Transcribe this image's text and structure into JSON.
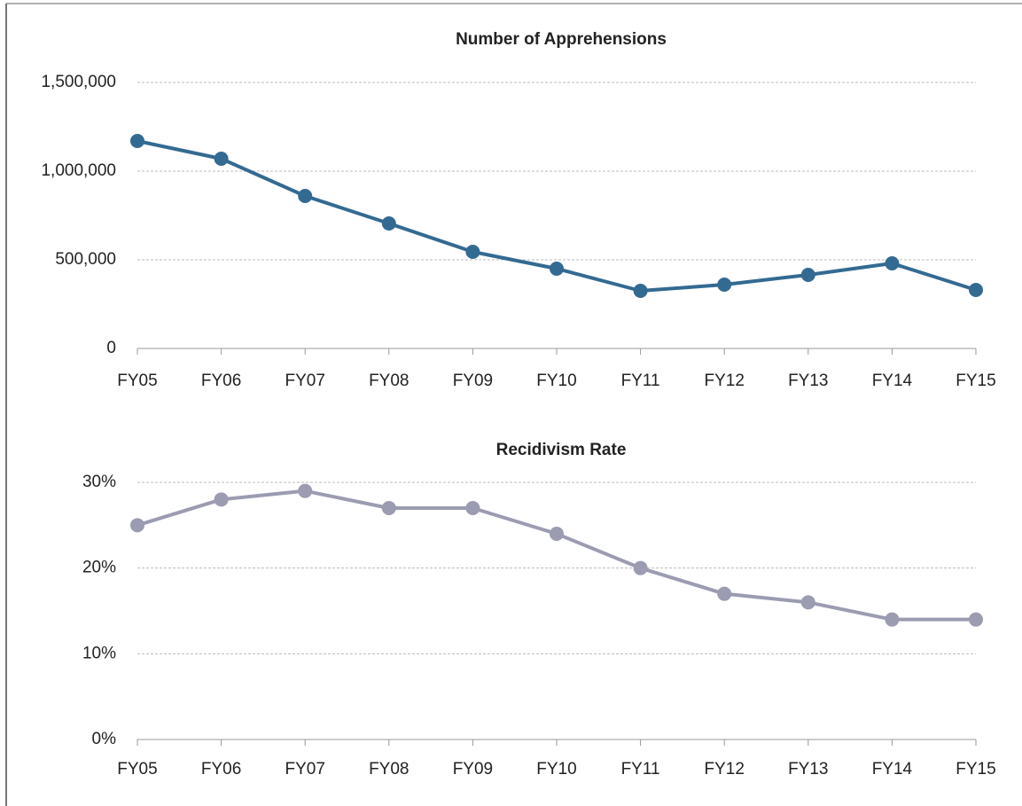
{
  "chart_data": [
    {
      "type": "line",
      "title": "Number of Apprehensions",
      "categories": [
        "FY05",
        "FY06",
        "FY07",
        "FY08",
        "FY09",
        "FY10",
        "FY11",
        "FY12",
        "FY13",
        "FY14",
        "FY15"
      ],
      "series": [
        {
          "name": "Apprehensions",
          "color": "#336a92",
          "values": [
            1170000,
            1070000,
            860000,
            705000,
            545000,
            450000,
            325000,
            360000,
            415000,
            480000,
            330000
          ]
        }
      ],
      "ylim": [
        0,
        1500000
      ],
      "yticks": [
        0,
        {
          "value": 500000,
          "label": "500,000"
        },
        {
          "value": 1000000,
          "label": "1,000,000"
        },
        {
          "value": 1500000,
          "label": "1,500,000"
        }
      ],
      "grid": true
    },
    {
      "type": "line",
      "title": "Recidivism Rate",
      "categories": [
        "FY05",
        "FY06",
        "FY07",
        "FY08",
        "FY09",
        "FY10",
        "FY11",
        "FY12",
        "FY13",
        "FY14",
        "FY15"
      ],
      "series": [
        {
          "name": "Recidivism Rate",
          "color": "#9b9bb1",
          "values": [
            25,
            28,
            29,
            27,
            27,
            24,
            20,
            17,
            16,
            14,
            14
          ]
        }
      ],
      "ylim": [
        0,
        30
      ],
      "yticks": [
        {
          "value": 0,
          "label": "0%"
        },
        {
          "value": 10,
          "label": "10%"
        },
        {
          "value": 20,
          "label": "20%"
        },
        {
          "value": 30,
          "label": "30%"
        }
      ],
      "grid": true
    }
  ]
}
